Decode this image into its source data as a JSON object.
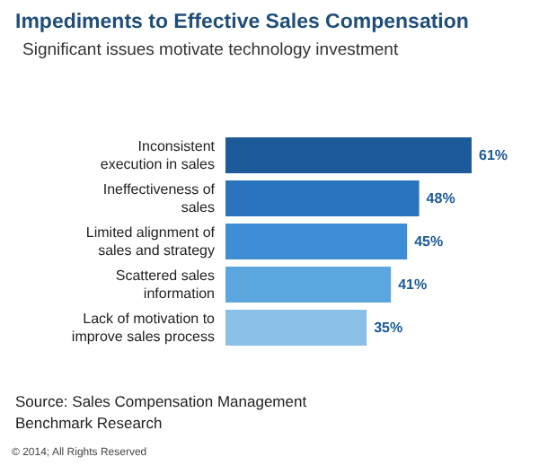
{
  "chart_data": {
    "type": "bar",
    "orientation": "horizontal",
    "title": "Impediments to Effective Sales Compensation",
    "subtitle": "Significant issues motivate technology investment",
    "categories": [
      "Inconsistent execution in sales",
      "Ineffectiveness of sales",
      "Limited alignment of sales and strategy",
      "Scattered sales information",
      "Lack of motivation to improve sales process"
    ],
    "values": [
      61,
      48,
      45,
      41,
      35
    ],
    "colors": [
      "#1c5a9a",
      "#2a74bd",
      "#3d8ed4",
      "#5ba6df",
      "#8ac0e8"
    ],
    "value_labels": [
      "61%",
      "48%",
      "45%",
      "41%",
      "35%"
    ],
    "annotations": [
      "Source: Sales Compensation Management Benchmark Research",
      "© 2014; All Rights Reserved"
    ]
  }
}
